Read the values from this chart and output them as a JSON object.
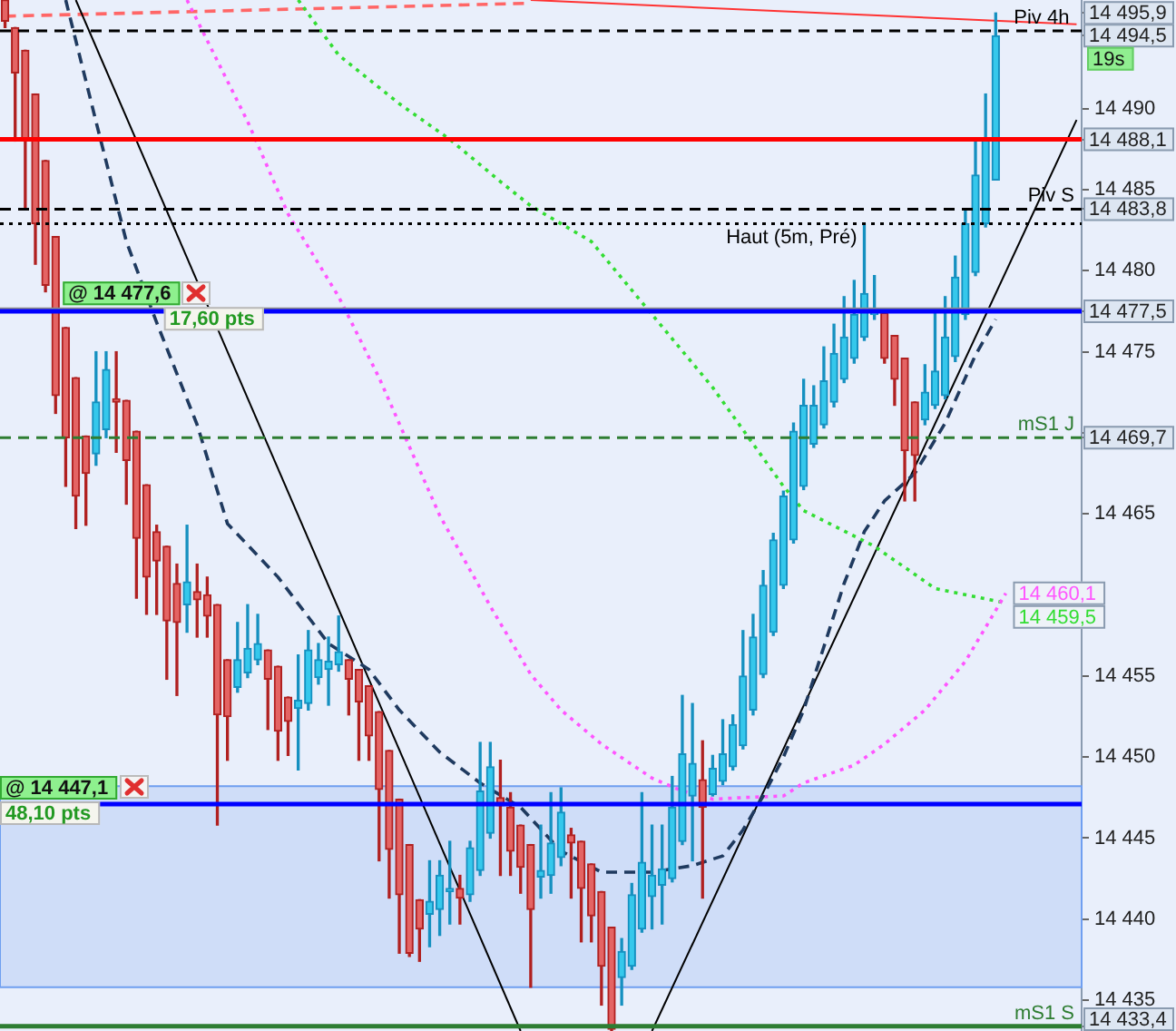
{
  "chart_data": {
    "type": "candlestick",
    "categories": [
      null,
      null,
      null,
      null,
      null,
      null,
      null,
      null,
      null,
      null,
      null,
      null,
      null,
      null,
      null,
      null,
      null,
      null,
      null,
      null,
      null,
      null,
      null,
      null,
      null,
      null,
      null,
      null,
      null,
      null,
      null,
      null,
      null,
      null,
      null,
      null,
      null,
      null,
      null,
      null,
      null,
      null,
      null,
      null,
      null,
      null,
      null,
      null,
      null,
      null,
      null,
      null,
      null,
      null,
      null,
      null,
      null,
      null,
      null,
      null,
      null,
      null,
      null,
      null,
      null,
      null,
      null,
      null,
      null,
      null,
      null,
      null,
      null,
      null,
      null,
      null,
      null,
      null,
      null,
      null,
      null,
      null,
      null,
      null,
      null,
      null,
      null,
      null,
      null,
      null,
      null,
      null,
      null,
      null,
      null,
      null,
      null,
      null,
      null,
      null,
      null,
      null,
      null,
      null,
      null,
      null,
      null
    ],
    "ohlc": [
      [
        14496.7,
        14496.7,
        14495.0,
        14495.4
      ],
      [
        14495.0,
        14495.0,
        14488.0,
        14492.2
      ],
      [
        14493.6,
        14493.6,
        14483.8,
        14488.1
      ],
      [
        14490.9,
        14490.9,
        14480.4,
        14482.9
      ],
      [
        14486.8,
        14486.8,
        14478.7,
        14479.1
      ],
      [
        14482.1,
        14482.1,
        14471.2,
        14472.3
      ],
      [
        14476.5,
        14476.5,
        14466.7,
        14469.7
      ],
      [
        14473.4,
        14473.4,
        14464.1,
        14466.1
      ],
      [
        14469.8,
        14469.8,
        14464.3,
        14467.5
      ],
      [
        14468.7,
        14475.0,
        14468.0,
        14471.9
      ],
      [
        14470.2,
        14475.0,
        14469.7,
        14473.9
      ],
      [
        14472.1,
        14475.0,
        14468.8,
        14471.9
      ],
      [
        14472.0,
        14472.0,
        14465.6,
        14468.3
      ],
      [
        14470.1,
        14470.1,
        14459.8,
        14463.5
      ],
      [
        14466.8,
        14466.8,
        14458.8,
        14461.1
      ],
      [
        14463.9,
        14464.3,
        14458.8,
        14462.1
      ],
      [
        14463.0,
        14463.0,
        14454.8,
        14458.4
      ],
      [
        14460.7,
        14461.9,
        14453.8,
        14458.3
      ],
      [
        14459.4,
        14464.3,
        14457.7,
        14460.8
      ],
      [
        14460.2,
        14461.9,
        14457.4,
        14459.7
      ],
      [
        14460.0,
        14461.1,
        14457.4,
        14458.7
      ],
      [
        14459.4,
        14459.4,
        14445.8,
        14452.6
      ],
      [
        14456.0,
        14456.0,
        14449.8,
        14452.5
      ],
      [
        14454.3,
        14458.3,
        14454.0,
        14456.0
      ],
      [
        14455.2,
        14459.4,
        14454.9,
        14456.7
      ],
      [
        14456.0,
        14458.8,
        14455.7,
        14457.0
      ],
      [
        14456.6,
        14456.6,
        14451.7,
        14454.8
      ],
      [
        14455.6,
        14455.6,
        14449.8,
        14451.6
      ],
      [
        14453.7,
        14453.7,
        14450.1,
        14452.2
      ],
      [
        14453.0,
        14456.3,
        14449.2,
        14453.5
      ],
      [
        14453.3,
        14457.8,
        14452.9,
        14456.6
      ],
      [
        14454.9,
        14457.0,
        14454.5,
        14456.0
      ],
      [
        14455.4,
        14457.4,
        14453.2,
        14455.9
      ],
      [
        14455.7,
        14458.7,
        14455.3,
        14456.5
      ],
      [
        14456.0,
        14456.0,
        14452.6,
        14454.8
      ],
      [
        14455.4,
        14455.4,
        14449.8,
        14453.4
      ],
      [
        14454.4,
        14454.4,
        14449.8,
        14451.3
      ],
      [
        14452.8,
        14452.8,
        14443.6,
        14448.0
      ],
      [
        14450.4,
        14450.4,
        14441.3,
        14444.3
      ],
      [
        14447.4,
        14447.4,
        14437.9,
        14441.5
      ],
      [
        14444.6,
        14444.6,
        14437.7,
        14437.9
      ],
      [
        14441.2,
        14441.2,
        14437.4,
        14439.4
      ],
      [
        14440.3,
        14443.6,
        14438.3,
        14441.1
      ],
      [
        14440.6,
        14443.6,
        14439.0,
        14442.7
      ],
      [
        14441.7,
        14444.8,
        14439.7,
        14441.9
      ],
      [
        14441.9,
        14442.7,
        14439.7,
        14441.3
      ],
      [
        14441.5,
        14444.8,
        14441.1,
        14444.4
      ],
      [
        14443.0,
        14450.9,
        14442.7,
        14447.9
      ],
      [
        14445.3,
        14450.9,
        14445.0,
        14449.4
      ],
      [
        14447.5,
        14449.8,
        14442.7,
        14447.0
      ],
      [
        14446.9,
        14447.8,
        14442.7,
        14444.2
      ],
      [
        14445.8,
        14445.8,
        14441.6,
        14443.2
      ],
      [
        14444.6,
        14444.6,
        14435.8,
        14440.6
      ],
      [
        14442.6,
        14445.8,
        14441.3,
        14443.0
      ],
      [
        14442.7,
        14447.8,
        14441.6,
        14444.7
      ],
      [
        14443.8,
        14448.1,
        14443.3,
        14446.6
      ],
      [
        14445.2,
        14445.6,
        14441.3,
        14444.7
      ],
      [
        14444.8,
        14444.8,
        14438.6,
        14441.9
      ],
      [
        14443.4,
        14443.4,
        14438.6,
        14440.2
      ],
      [
        14441.7,
        14441.7,
        14434.7,
        14437.1
      ],
      [
        14439.5,
        14439.5,
        14433.1,
        14433.2
      ],
      [
        14436.4,
        14438.8,
        14434.7,
        14438.0
      ],
      [
        14437.1,
        14442.2,
        14436.9,
        14441.5
      ],
      [
        14439.4,
        14447.8,
        14439.2,
        14443.5
      ],
      [
        14441.4,
        14445.8,
        14439.4,
        14442.7
      ],
      [
        14442.1,
        14445.8,
        14439.7,
        14443.1
      ],
      [
        14442.5,
        14448.8,
        14442.3,
        14446.9
      ],
      [
        14444.8,
        14453.8,
        14444.6,
        14450.2
      ],
      [
        14447.6,
        14453.3,
        14443.6,
        14449.6
      ],
      [
        14448.6,
        14451.0,
        14441.3,
        14446.9
      ],
      [
        14447.7,
        14450.1,
        14447.6,
        14449.3
      ],
      [
        14448.5,
        14452.3,
        14448.3,
        14450.2
      ],
      [
        14449.4,
        14452.6,
        14449.2,
        14452.0
      ],
      [
        14450.7,
        14457.8,
        14450.5,
        14455.0
      ],
      [
        14452.9,
        14458.8,
        14452.6,
        14457.4
      ],
      [
        14455.1,
        14461.5,
        14454.9,
        14460.6
      ],
      [
        14457.7,
        14463.8,
        14457.5,
        14463.4
      ],
      [
        14460.6,
        14466.4,
        14460.4,
        14466.1
      ],
      [
        14463.4,
        14470.6,
        14463.2,
        14470.1
      ],
      [
        14466.7,
        14473.3,
        14466.5,
        14471.7
      ],
      [
        14469.3,
        14472.9,
        14469.1,
        14471.7
      ],
      [
        14470.5,
        14475.3,
        14470.3,
        14473.2
      ],
      [
        14471.9,
        14476.7,
        14471.6,
        14474.9
      ],
      [
        14473.3,
        14478.4,
        14473.1,
        14475.9
      ],
      [
        14474.6,
        14479.4,
        14474.3,
        14477.3
      ],
      [
        14475.9,
        14482.9,
        14475.7,
        14478.6
      ],
      [
        14477.3,
        14479.7,
        14477.0,
        14477.4
      ],
      [
        14477.4,
        14477.6,
        14474.3,
        14474.6
      ],
      [
        14476.0,
        14476.0,
        14471.7,
        14473.3
      ],
      [
        14474.6,
        14474.6,
        14465.8,
        14468.9
      ],
      [
        14471.9,
        14471.9,
        14465.8,
        14468.6
      ],
      [
        14470.8,
        14474.2,
        14470.5,
        14472.5
      ],
      [
        14471.7,
        14477.4,
        14471.5,
        14473.8
      ],
      [
        14472.3,
        14478.4,
        14472.1,
        14475.9
      ],
      [
        14474.7,
        14480.9,
        14474.4,
        14479.6
      ],
      [
        14477.3,
        14483.8,
        14477.0,
        14482.9
      ],
      [
        14479.9,
        14488.1,
        14479.7,
        14485.9
      ],
      [
        14482.9,
        14490.9,
        14482.7,
        14488.1
      ],
      [
        14485.6,
        14495.9,
        14485.6,
        14494.5
      ],
      null,
      null,
      null,
      null,
      null,
      null,
      null,
      null
    ],
    "series": [
      {
        "type": "line",
        "color": "#1f3a5f",
        "line_style": "dashed",
        "values": [
          null,
          null,
          null,
          null,
          null,
          null,
          14496.7,
          null,
          null,
          14489.2,
          null,
          null,
          14481.8,
          null,
          null,
          14476.8,
          null,
          null,
          null,
          14470.5,
          null,
          null,
          14464.4,
          null,
          null,
          null,
          null,
          14461.1,
          null,
          null,
          null,
          null,
          14457.0,
          null,
          null,
          null,
          14455.4,
          null,
          null,
          14452.9,
          null,
          null,
          null,
          14450.3,
          null,
          null,
          null,
          14448.4,
          null,
          null,
          null,
          14446.9,
          null,
          null,
          null,
          14444.2,
          null,
          null,
          null,
          14442.9,
          null,
          null,
          null,
          null,
          14442.9,
          null,
          null,
          null,
          14443.3,
          null,
          null,
          14443.9,
          null,
          14445.5,
          null,
          14447.6,
          null,
          14450.0,
          null,
          14452.9,
          null,
          14456.8,
          null,
          14460.7,
          null,
          14463.9,
          null,
          14465.8,
          null,
          null,
          14467.5,
          null,
          null,
          14470.6,
          null,
          null,
          14474.8,
          null,
          14477.0,
          null,
          null,
          null,
          null,
          null,
          null,
          null,
          null
        ]
      },
      {
        "type": "line",
        "color": "#ff55ff",
        "line_style": "dotted",
        "values": [
          null,
          null,
          null,
          null,
          null,
          null,
          null,
          null,
          null,
          null,
          null,
          null,
          null,
          null,
          null,
          null,
          null,
          null,
          14496.7,
          null,
          null,
          null,
          null,
          null,
          14489.2,
          null,
          null,
          null,
          14483.5,
          null,
          null,
          null,
          null,
          14478.4,
          null,
          null,
          null,
          14473.4,
          null,
          null,
          null,
          null,
          null,
          14464.9,
          null,
          null,
          null,
          null,
          14459.3,
          null,
          null,
          null,
          14455.1,
          null,
          null,
          14452.9,
          null,
          null,
          null,
          14450.8,
          null,
          null,
          null,
          null,
          14448.7,
          null,
          null,
          14447.9,
          null,
          null,
          14447.4,
          null,
          null,
          14447.5,
          null,
          null,
          null,
          14447.6,
          null,
          14448.4,
          null,
          null,
          null,
          null,
          14449.5,
          null,
          null,
          14450.8,
          null,
          null,
          null,
          14452.9,
          null,
          null,
          null,
          14455.9,
          null,
          null,
          null,
          14460.1,
          null,
          null,
          null,
          null,
          null,
          null,
          null
        ],
        "value_labels": [
          null,
          null,
          null,
          null,
          null,
          null,
          null,
          null,
          null,
          null,
          null,
          null,
          null,
          null,
          null,
          null,
          null,
          null,
          null,
          null,
          null,
          null,
          null,
          null,
          null,
          null,
          null,
          null,
          null,
          null,
          null,
          null,
          null,
          null,
          null,
          null,
          null,
          null,
          null,
          null,
          null,
          null,
          null,
          null,
          null,
          null,
          null,
          null,
          null,
          null,
          null,
          null,
          null,
          null,
          null,
          null,
          null,
          null,
          null,
          null,
          null,
          null,
          null,
          null,
          null,
          null,
          null,
          null,
          null,
          null,
          null,
          null,
          null,
          null,
          null,
          null,
          null,
          null,
          null,
          null,
          null,
          null,
          null,
          null,
          null,
          null,
          null,
          null,
          null,
          null,
          null,
          null,
          null,
          null,
          null,
          null,
          null,
          null,
          null,
          "14 460,1",
          null,
          null,
          null,
          null,
          null,
          null,
          null
        ]
      },
      {
        "type": "line",
        "color": "#33dd33",
        "line_style": "dotted",
        "values": [
          null,
          null,
          null,
          null,
          null,
          null,
          null,
          null,
          null,
          null,
          null,
          null,
          null,
          null,
          null,
          null,
          null,
          null,
          null,
          null,
          null,
          null,
          null,
          null,
          null,
          null,
          null,
          null,
          null,
          14496.7,
          null,
          null,
          null,
          14493.3,
          null,
          null,
          null,
          null,
          null,
          14490.3,
          null,
          null,
          null,
          null,
          14488.1,
          null,
          null,
          null,
          null,
          14485.5,
          null,
          null,
          14484.0,
          null,
          null,
          null,
          null,
          null,
          14481.8,
          null,
          null,
          null,
          null,
          null,
          14477.3,
          null,
          null,
          null,
          null,
          null,
          14472.8,
          null,
          null,
          null,
          null,
          null,
          null,
          14466.7,
          null,
          14465.2,
          null,
          null,
          null,
          null,
          null,
          null,
          14463.0,
          null,
          null,
          null,
          null,
          null,
          14460.4,
          null,
          null,
          null,
          null,
          null,
          null,
          14459.5,
          null,
          null,
          null,
          null,
          null,
          null,
          null
        ],
        "value_labels": [
          null,
          null,
          null,
          null,
          null,
          null,
          null,
          null,
          null,
          null,
          null,
          null,
          null,
          null,
          null,
          null,
          null,
          null,
          null,
          null,
          null,
          null,
          null,
          null,
          null,
          null,
          null,
          null,
          null,
          null,
          null,
          null,
          null,
          null,
          null,
          null,
          null,
          null,
          null,
          null,
          null,
          null,
          null,
          null,
          null,
          null,
          null,
          null,
          null,
          null,
          null,
          null,
          null,
          null,
          null,
          null,
          null,
          null,
          null,
          null,
          null,
          null,
          null,
          null,
          null,
          null,
          null,
          null,
          null,
          null,
          null,
          null,
          null,
          null,
          null,
          null,
          null,
          null,
          null,
          null,
          null,
          null,
          null,
          null,
          null,
          null,
          null,
          null,
          null,
          null,
          null,
          null,
          null,
          null,
          null,
          null,
          null,
          null,
          null,
          "14 459,5",
          null,
          null,
          null,
          null,
          null,
          null,
          null
        ]
      },
      {
        "type": "line",
        "color": "#000000",
        "line_style": "solid",
        "values": [
          null,
          null,
          null,
          null,
          null,
          null,
          null,
          14496.7,
          null,
          null,
          null,
          null,
          null,
          null,
          null,
          null,
          null,
          null,
          null,
          null,
          null,
          null,
          null,
          null,
          null,
          null,
          null,
          null,
          null,
          null,
          null,
          null,
          null,
          null,
          null,
          null,
          null,
          null,
          null,
          null,
          null,
          null,
          null,
          null,
          null,
          null,
          null,
          null,
          null,
          null,
          null,
          14433.1,
          null,
          null,
          null,
          null,
          null,
          null,
          null,
          null,
          null,
          null,
          null,
          null,
          null,
          null,
          null,
          null,
          null,
          null,
          null,
          null,
          null,
          null,
          null,
          null,
          null,
          null,
          null,
          null,
          null,
          null,
          null,
          null,
          null,
          null,
          null,
          null,
          null,
          null,
          null,
          null,
          null,
          null,
          null,
          null,
          null,
          null,
          null,
          null,
          null,
          null,
          null,
          null,
          null,
          null,
          null
        ]
      },
      {
        "type": "line",
        "color": "#000000",
        "line_style": "solid",
        "values": [
          null,
          null,
          null,
          null,
          null,
          null,
          null,
          null,
          null,
          null,
          null,
          null,
          null,
          null,
          null,
          null,
          null,
          null,
          null,
          null,
          null,
          null,
          null,
          null,
          null,
          null,
          null,
          null,
          null,
          null,
          null,
          null,
          null,
          null,
          null,
          null,
          null,
          null,
          null,
          null,
          null,
          null,
          null,
          null,
          null,
          null,
          null,
          null,
          null,
          null,
          null,
          null,
          null,
          null,
          null,
          null,
          null,
          null,
          null,
          null,
          null,
          null,
          null,
          null,
          14433.1,
          null,
          null,
          null,
          null,
          null,
          null,
          null,
          null,
          null,
          null,
          null,
          null,
          null,
          null,
          null,
          null,
          null,
          null,
          null,
          null,
          null,
          null,
          null,
          null,
          null,
          null,
          null,
          null,
          null,
          null,
          null,
          null,
          null,
          null,
          null,
          null,
          null,
          null,
          null,
          null,
          null,
          14489.3
        ]
      },
      {
        "type": "line",
        "color": "#ff3333",
        "line_style": "solid",
        "values": [
          null,
          null,
          null,
          null,
          null,
          null,
          null,
          null,
          null,
          null,
          null,
          null,
          null,
          null,
          null,
          null,
          null,
          null,
          null,
          null,
          null,
          null,
          null,
          null,
          null,
          null,
          null,
          null,
          null,
          null,
          null,
          null,
          null,
          null,
          null,
          null,
          null,
          null,
          null,
          null,
          null,
          null,
          null,
          null,
          null,
          null,
          null,
          null,
          null,
          null,
          null,
          null,
          14496.7,
          null,
          null,
          null,
          null,
          null,
          null,
          null,
          null,
          null,
          null,
          null,
          null,
          null,
          null,
          null,
          null,
          null,
          null,
          null,
          null,
          null,
          null,
          null,
          null,
          null,
          null,
          null,
          null,
          null,
          null,
          null,
          null,
          null,
          null,
          null,
          null,
          null,
          null,
          null,
          null,
          null,
          null,
          null,
          null,
          null,
          null,
          null,
          null,
          null,
          null,
          null,
          null,
          null,
          14495.2
        ]
      },
      {
        "type": "line",
        "color": "#ff6666",
        "line_style": "dashed",
        "values": [
          14495.7,
          null,
          null,
          null,
          null,
          null,
          null,
          null,
          null,
          null,
          null,
          null,
          null,
          null,
          null,
          null,
          null,
          null,
          null,
          null,
          null,
          null,
          null,
          null,
          null,
          null,
          null,
          null,
          null,
          null,
          null,
          null,
          null,
          null,
          null,
          null,
          null,
          null,
          null,
          null,
          null,
          null,
          null,
          null,
          null,
          null,
          null,
          null,
          null,
          null,
          null,
          null,
          14496.5,
          null,
          null,
          null,
          null,
          null,
          null,
          null,
          null,
          null,
          null,
          null,
          null,
          null,
          null,
          null,
          null,
          null,
          null,
          null,
          null,
          null,
          null,
          null,
          null,
          null,
          null,
          null,
          null,
          null,
          null,
          null,
          null,
          null,
          null,
          null,
          null,
          null,
          null,
          null,
          null,
          null,
          null,
          null,
          null,
          null,
          null,
          null,
          null,
          null,
          null,
          null,
          null,
          null,
          null
        ]
      }
    ],
    "ylim": [
      14433.1,
      14496.7
    ],
    "yticks": [
      {
        "value": 14435,
        "label": "14 435"
      },
      {
        "value": 14440,
        "label": "14 440"
      },
      {
        "value": 14445,
        "label": "14 445"
      },
      {
        "value": 14450,
        "label": "14 450"
      },
      {
        "value": 14455,
        "label": "14 455"
      },
      {
        "value": 14460,
        "label": null
      },
      {
        "value": 14465,
        "label": "14 465"
      },
      {
        "value": 14470,
        "label": null
      },
      {
        "value": 14475,
        "label": "14 475"
      },
      {
        "value": 14480,
        "label": "14 480"
      },
      {
        "value": 14485,
        "label": "14 485"
      },
      {
        "value": 14490,
        "label": "14 490"
      },
      {
        "value": 14495.9,
        "label": "14 495,9"
      },
      {
        "value": 14494.5,
        "label": "14 494,5"
      },
      {
        "value": 14488.1,
        "label": "14 488,1"
      },
      {
        "value": 14483.8,
        "label": "14 483,8"
      },
      {
        "value": 14477.5,
        "label": "14 477,5"
      },
      {
        "value": 14469.7,
        "label": "14 469,7"
      },
      {
        "value": 14433.4,
        "label": "14 433,4"
      }
    ],
    "bands": [
      {
        "axis": "y",
        "from": 14435.8,
        "to": 14448.2,
        "color": "#c8d8f8"
      }
    ],
    "ref_lines": [
      {
        "axis": "y",
        "value": 14494.8,
        "label": "Piv 4h",
        "color": "#000000",
        "line_style": "dashed"
      },
      {
        "axis": "y",
        "value": 14488.1,
        "label": null,
        "color": "#ff0000",
        "line_style": "solid"
      },
      {
        "axis": "y",
        "value": 14483.8,
        "label": "Piv S",
        "color": "#000000",
        "line_style": "dashed"
      },
      {
        "axis": "y",
        "value": 14482.9,
        "label": "Haut (5m, Pré)",
        "color": "#000000",
        "line_style": "dotted"
      },
      {
        "axis": "y",
        "value": 14477.6,
        "label": null,
        "color": "#8c8c8c",
        "line_style": "solid"
      },
      {
        "axis": "y",
        "value": 14477.5,
        "label": null,
        "color": "#0000ff",
        "line_style": "solid"
      },
      {
        "axis": "y",
        "value": 14469.7,
        "label": "mS1 J",
        "color": "#2e7d32",
        "line_style": "dashed"
      },
      {
        "axis": "y",
        "value": 14447.1,
        "label": null,
        "color": "#0000ff",
        "line_style": "solid"
      },
      {
        "axis": "y",
        "value": 14433.4,
        "label": "mS1 S",
        "color": "#2e7d32",
        "line_style": "solid"
      }
    ],
    "annotations": [
      "19s",
      {
        "text": "@ 14 477,6",
        "y": 14477.6
      },
      "17,60 pts",
      {
        "text": "@ 14 447,1",
        "y": 14447.1
      },
      "48,10 pts"
    ]
  }
}
